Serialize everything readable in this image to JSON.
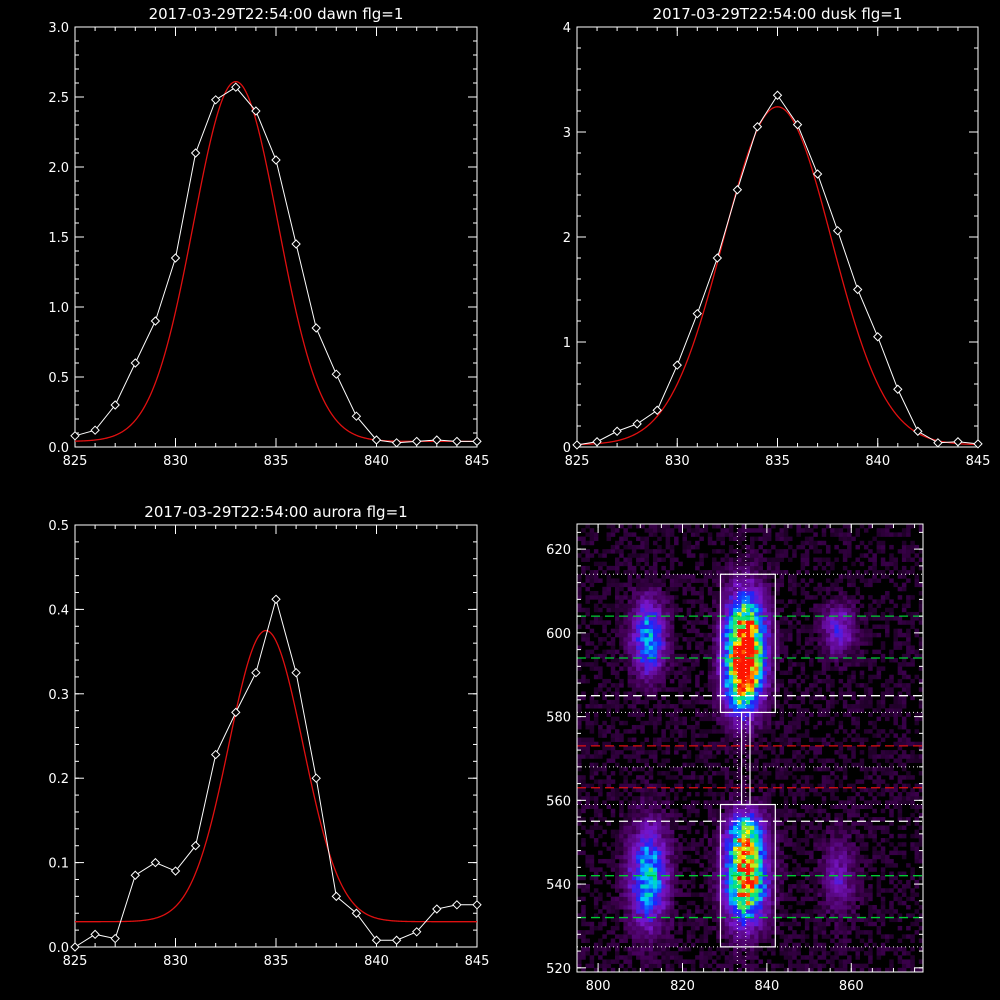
{
  "colors": {
    "background": "#000000",
    "foreground": "#ffffff",
    "fit": "#e01010",
    "green": "#00cc33",
    "red": "#dd1010"
  },
  "chart_data": [
    {
      "type": "line",
      "title": "2017-03-29T22:54:00 dawn flg=1",
      "xlim": [
        825,
        845
      ],
      "ylim": [
        0,
        3.0
      ],
      "xticks": [
        "825",
        "830",
        "835",
        "840",
        "845"
      ],
      "yticks": [
        "0.0",
        "0.5",
        "1.0",
        "1.5",
        "2.0",
        "2.5",
        "3.0"
      ],
      "series": [
        {
          "style": "white line with diamonds",
          "x": [
            825,
            826,
            827,
            828,
            829,
            830,
            831,
            832,
            833,
            834,
            835,
            836,
            837,
            838,
            839,
            840,
            841,
            842,
            843,
            844,
            845
          ],
          "y": [
            0.08,
            0.12,
            0.3,
            0.6,
            0.9,
            1.35,
            2.1,
            2.48,
            2.57,
            2.4,
            2.05,
            1.45,
            0.85,
            0.52,
            0.22,
            0.05,
            0.03,
            0.04,
            0.05,
            0.04,
            0.04
          ]
        },
        {
          "style": "red gaussian fit",
          "amplitude": 2.57,
          "center": 833.0,
          "sigma": 2.1,
          "offset": 0.04
        }
      ]
    },
    {
      "type": "line",
      "title": "2017-03-29T22:54:00 dusk flg=1",
      "xlim": [
        825,
        845
      ],
      "ylim": [
        0,
        4
      ],
      "xticks": [
        "825",
        "830",
        "835",
        "840",
        "845"
      ],
      "yticks": [
        "0",
        "1",
        "2",
        "3",
        "4"
      ],
      "series": [
        {
          "style": "white line with diamonds",
          "x": [
            825,
            826,
            827,
            828,
            829,
            830,
            831,
            832,
            833,
            834,
            835,
            836,
            837,
            838,
            839,
            840,
            841,
            842,
            843,
            844,
            845
          ],
          "y": [
            0.02,
            0.05,
            0.15,
            0.22,
            0.35,
            0.78,
            1.27,
            1.8,
            2.45,
            3.05,
            3.35,
            3.07,
            2.6,
            2.06,
            1.5,
            1.05,
            0.55,
            0.15,
            0.04,
            0.05,
            0.03
          ]
        },
        {
          "style": "red gaussian fit",
          "amplitude": 3.22,
          "center": 835.0,
          "sigma": 2.7,
          "offset": 0.02
        }
      ]
    },
    {
      "type": "line",
      "title": "2017-03-29T22:54:00 aurora flg=1",
      "xlim": [
        825,
        845
      ],
      "ylim": [
        0,
        0.5
      ],
      "xticks": [
        "825",
        "830",
        "835",
        "840",
        "845"
      ],
      "yticks": [
        "0.0",
        "0.1",
        "0.2",
        "0.3",
        "0.4",
        "0.5"
      ],
      "series": [
        {
          "style": "white line with diamonds",
          "x": [
            825,
            826,
            827,
            828,
            829,
            830,
            831,
            832,
            833,
            834,
            835,
            836,
            837,
            838,
            839,
            840,
            841,
            842,
            843,
            844,
            845
          ],
          "y": [
            0.0,
            0.015,
            0.01,
            0.085,
            0.1,
            0.09,
            0.12,
            0.228,
            0.278,
            0.325,
            0.412,
            0.325,
            0.2,
            0.06,
            0.04,
            0.008,
            0.008,
            0.018,
            0.045,
            0.05,
            0.05
          ]
        },
        {
          "style": "red gaussian fit",
          "amplitude": 0.345,
          "center": 834.5,
          "sigma": 1.85,
          "offset": 0.03
        }
      ]
    },
    {
      "type": "heatmap",
      "title": "",
      "xlim": [
        795,
        877
      ],
      "ylim": [
        519,
        626
      ],
      "xticks": [
        "800",
        "820",
        "840",
        "860"
      ],
      "yticks": [
        "520",
        "540",
        "560",
        "580",
        "600",
        "620"
      ],
      "colorscale": [
        "purple",
        "blue",
        "cyan",
        "green",
        "yellow",
        "red"
      ],
      "blobs": [
        {
          "x": 835,
          "y": 598,
          "sx": 3.2,
          "sy": 8,
          "amp": 1.0
        },
        {
          "x": 834,
          "y": 588,
          "sx": 3.0,
          "sy": 6,
          "amp": 0.55
        },
        {
          "x": 835,
          "y": 541,
          "sx": 3.3,
          "sy": 7,
          "amp": 0.95
        },
        {
          "x": 835,
          "y": 552,
          "sx": 3.0,
          "sy": 4,
          "amp": 0.5
        },
        {
          "x": 812,
          "y": 599,
          "sx": 2.6,
          "sy": 6,
          "amp": 0.55
        },
        {
          "x": 812,
          "y": 542,
          "sx": 3.0,
          "sy": 8,
          "amp": 0.6
        },
        {
          "x": 857,
          "y": 601,
          "sx": 2.6,
          "sy": 4,
          "amp": 0.3
        },
        {
          "x": 857,
          "y": 542,
          "sx": 2.6,
          "sy": 6,
          "amp": 0.22
        }
      ],
      "boxes": [
        {
          "x0": 829,
          "x1": 842,
          "y0": 581,
          "y1": 614
        },
        {
          "x0": 829,
          "x1": 842,
          "y0": 525,
          "y1": 559
        },
        {
          "x0": 834,
          "x1": 836,
          "y0": 559,
          "y1": 581
        }
      ],
      "green_dashed_y": [
        604,
        594,
        542,
        532
      ],
      "white_dashed_y": [
        585,
        555
      ],
      "red_dashed_y": [
        573,
        563
      ],
      "dotted_y": [
        614,
        581,
        568,
        559,
        525
      ],
      "dotted_x": [
        833,
        835
      ]
    }
  ]
}
